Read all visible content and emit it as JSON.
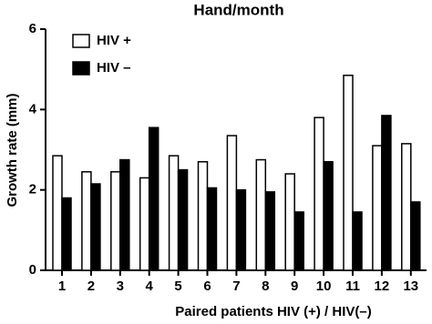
{
  "chart_data": {
    "type": "bar",
    "title": "Hand/month",
    "x_label": "Paired patients HIV (+) / HIV(–)",
    "y_label": "Growth rate (mm)",
    "categories": [
      "1",
      "2",
      "3",
      "4",
      "5",
      "6",
      "7",
      "8",
      "9",
      "10",
      "11",
      "12",
      "13"
    ],
    "series": [
      {
        "name": "HIV +",
        "color": "#ffffff",
        "values": [
          2.85,
          2.45,
          2.45,
          2.3,
          2.85,
          2.7,
          3.35,
          2.75,
          2.4,
          3.8,
          4.85,
          3.1,
          3.15
        ]
      },
      {
        "name": "HIV –",
        "color": "#000000",
        "values": [
          1.8,
          2.15,
          2.75,
          3.55,
          2.5,
          2.05,
          2.0,
          1.95,
          1.45,
          2.7,
          1.45,
          3.85,
          1.7
        ]
      }
    ],
    "ylim": [
      0,
      6
    ],
    "yticks": [
      0,
      2,
      4,
      6
    ],
    "grid": false,
    "legend": "top-left"
  }
}
